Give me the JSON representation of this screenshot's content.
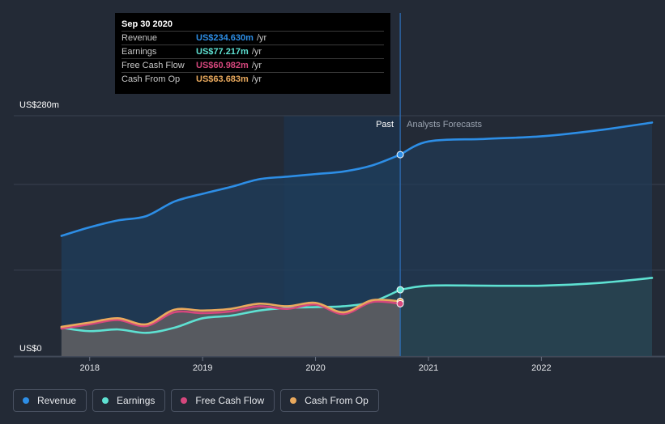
{
  "chart_data": {
    "type": "area",
    "title": "",
    "y_unit": "US$m",
    "ylim": [
      0,
      280
    ],
    "y_ticks": [
      {
        "value": 280,
        "label": "US$280m"
      },
      {
        "value": 0,
        "label": "US$0"
      }
    ],
    "x_ticks": [
      {
        "value": 2018,
        "label": "2018"
      },
      {
        "value": 2019,
        "label": "2019"
      },
      {
        "value": 2020,
        "label": "2020"
      },
      {
        "value": 2021,
        "label": "2021"
      },
      {
        "value": 2022,
        "label": "2022"
      }
    ],
    "xlim": [
      2017.55,
      2022.98
    ],
    "divider_x": 2020.75,
    "past_label": "Past",
    "forecast_label": "Analysts Forecasts",
    "series": [
      {
        "name": "Revenue",
        "color": "#2d8ee6",
        "fill": "#1f3d5c",
        "points": [
          [
            2017.75,
            140
          ],
          [
            2018.0,
            150
          ],
          [
            2018.25,
            158
          ],
          [
            2018.5,
            163
          ],
          [
            2018.75,
            180
          ],
          [
            2019.0,
            189
          ],
          [
            2019.25,
            197
          ],
          [
            2019.5,
            206
          ],
          [
            2019.75,
            209
          ],
          [
            2020.0,
            212
          ],
          [
            2020.25,
            215
          ],
          [
            2020.5,
            222
          ],
          [
            2020.75,
            234.63
          ]
        ],
        "forecast": [
          [
            2020.75,
            234.63
          ],
          [
            2021.0,
            250
          ],
          [
            2021.5,
            253
          ],
          [
            2022.0,
            256
          ],
          [
            2022.5,
            263
          ],
          [
            2022.98,
            272
          ]
        ]
      },
      {
        "name": "Earnings",
        "color": "#5ee1d2",
        "fill": "#2c4a52",
        "points": [
          [
            2017.75,
            33
          ],
          [
            2018.0,
            29
          ],
          [
            2018.25,
            31
          ],
          [
            2018.5,
            27
          ],
          [
            2018.75,
            33
          ],
          [
            2019.0,
            44
          ],
          [
            2019.25,
            47
          ],
          [
            2019.5,
            53
          ],
          [
            2019.75,
            56
          ],
          [
            2020.0,
            57
          ],
          [
            2020.25,
            58
          ],
          [
            2020.5,
            63
          ],
          [
            2020.75,
            77.217
          ]
        ],
        "forecast": [
          [
            2020.75,
            77.217
          ],
          [
            2021.0,
            82
          ],
          [
            2021.5,
            82
          ],
          [
            2022.0,
            82
          ],
          [
            2022.5,
            85
          ],
          [
            2022.98,
            91
          ]
        ]
      },
      {
        "name": "Free Cash Flow",
        "color": "#d6477d",
        "fill": "#5a5a6a",
        "points": [
          [
            2017.75,
            32
          ],
          [
            2018.0,
            37
          ],
          [
            2018.25,
            42
          ],
          [
            2018.5,
            35
          ],
          [
            2018.75,
            51
          ],
          [
            2019.0,
            50
          ],
          [
            2019.25,
            52
          ],
          [
            2019.5,
            58
          ],
          [
            2019.75,
            55
          ],
          [
            2020.0,
            60
          ],
          [
            2020.25,
            49
          ],
          [
            2020.5,
            63
          ],
          [
            2020.75,
            60.982
          ]
        ]
      },
      {
        "name": "Cash From Op",
        "color": "#e9a95d",
        "fill": "#6a6560",
        "points": [
          [
            2017.75,
            34
          ],
          [
            2018.0,
            39
          ],
          [
            2018.25,
            44
          ],
          [
            2018.5,
            37
          ],
          [
            2018.75,
            54
          ],
          [
            2019.0,
            53
          ],
          [
            2019.25,
            55
          ],
          [
            2019.5,
            61
          ],
          [
            2019.75,
            58
          ],
          [
            2020.0,
            62
          ],
          [
            2020.25,
            51
          ],
          [
            2020.5,
            65
          ],
          [
            2020.75,
            63.683
          ]
        ]
      }
    ]
  },
  "tooltip": {
    "date": "Sep 30 2020",
    "rows": [
      {
        "label": "Revenue",
        "value": "US$234.630m",
        "unit": "/yr",
        "color": "#2d8ee6"
      },
      {
        "label": "Earnings",
        "value": "US$77.217m",
        "unit": "/yr",
        "color": "#5ee1d2"
      },
      {
        "label": "Free Cash Flow",
        "value": "US$60.982m",
        "unit": "/yr",
        "color": "#d6477d"
      },
      {
        "label": "Cash From Op",
        "value": "US$63.683m",
        "unit": "/yr",
        "color": "#e9a95d"
      }
    ]
  },
  "legend": [
    {
      "label": "Revenue",
      "color": "#2d8ee6"
    },
    {
      "label": "Earnings",
      "color": "#5ee1d2"
    },
    {
      "label": "Free Cash Flow",
      "color": "#d6477d"
    },
    {
      "label": "Cash From Op",
      "color": "#e9a95d"
    }
  ]
}
